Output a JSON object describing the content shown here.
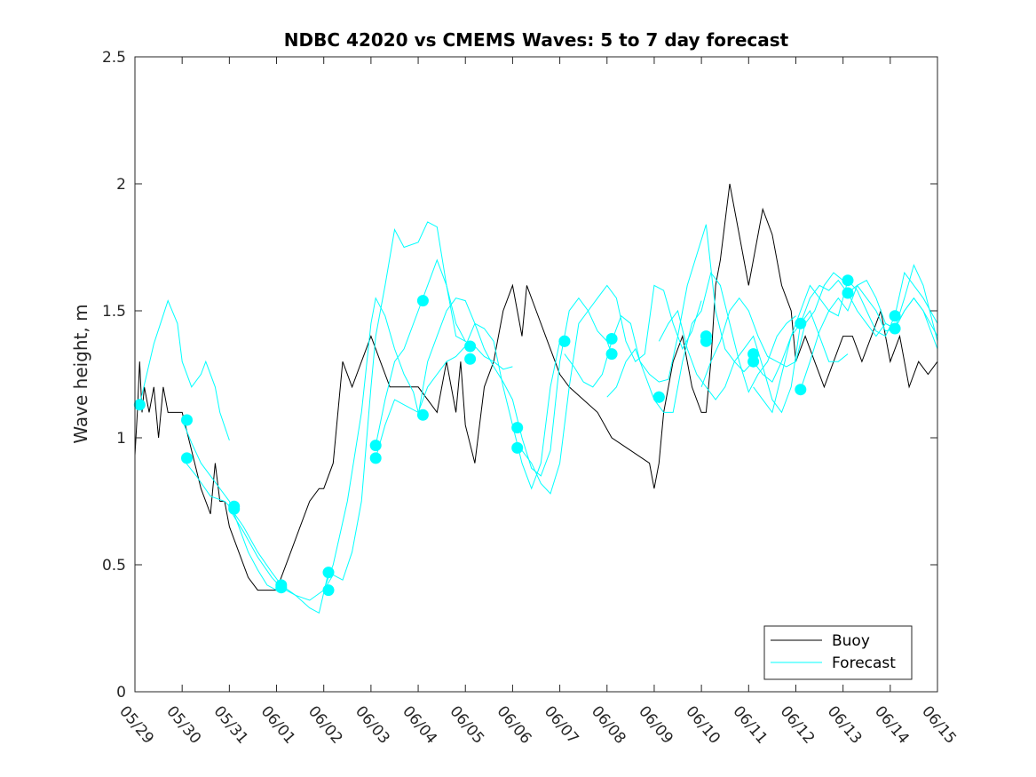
{
  "chart_data": {
    "type": "line",
    "title": "NDBC 42020 vs CMEMS Waves: 5 to 7 day forecast",
    "xlabel": "",
    "ylabel": "Wave height, m",
    "xlim": [
      "05/29",
      "06/15"
    ],
    "ylim": [
      0,
      2.5
    ],
    "x_ticks": [
      "05/29",
      "05/30",
      "05/31",
      "06/01",
      "06/02",
      "06/03",
      "06/04",
      "06/05",
      "06/06",
      "06/07",
      "06/08",
      "06/09",
      "06/10",
      "06/11",
      "06/12",
      "06/13",
      "06/14",
      "06/15"
    ],
    "y_ticks": [
      "0",
      "0.5",
      "1",
      "1.5",
      "2",
      "2.5"
    ],
    "legend": {
      "placement": "bottom-right",
      "entries": [
        "Buoy",
        "Forecast"
      ]
    },
    "colors": {
      "buoy": "#000000",
      "forecast": "#00ffff"
    },
    "series": [
      {
        "name": "Buoy",
        "x_days_after_0529": [
          0.0,
          0.05,
          0.1,
          0.15,
          0.2,
          0.3,
          0.4,
          0.5,
          0.6,
          0.7,
          0.8,
          0.9,
          1.0,
          1.2,
          1.4,
          1.6,
          1.7,
          1.8,
          1.9,
          2.0,
          2.2,
          2.4,
          2.6,
          2.8,
          3.0,
          3.1,
          3.3,
          3.5,
          3.7,
          3.9,
          4.0,
          4.2,
          4.4,
          4.6,
          4.8,
          5.0,
          5.2,
          5.4,
          5.6,
          5.8,
          6.0,
          6.2,
          6.4,
          6.6,
          6.8,
          6.9,
          7.0,
          7.2,
          7.4,
          7.6,
          7.8,
          8.0,
          8.2,
          8.3,
          8.5,
          8.7,
          8.9,
          9.0,
          9.2,
          9.5,
          9.8,
          10.1,
          10.5,
          10.9,
          11.0,
          11.1,
          11.2,
          11.4,
          11.6,
          11.8,
          12.0,
          12.1,
          12.2,
          12.3,
          12.4,
          12.6,
          12.8,
          13.0,
          13.1,
          13.3,
          13.5,
          13.7,
          13.9,
          14.0,
          14.2,
          14.4,
          14.6,
          14.8,
          15.0,
          15.2,
          15.4,
          15.6,
          15.8,
          16.0,
          16.2,
          16.4,
          16.6,
          16.8,
          17.0
        ],
        "values": [
          0.93,
          1.1,
          1.3,
          1.1,
          1.2,
          1.1,
          1.2,
          1.0,
          1.2,
          1.1,
          1.1,
          1.1,
          1.1,
          0.95,
          0.8,
          0.7,
          0.9,
          0.75,
          0.75,
          0.65,
          0.55,
          0.45,
          0.4,
          0.4,
          0.4,
          0.45,
          0.55,
          0.65,
          0.75,
          0.8,
          0.8,
          0.9,
          1.3,
          1.2,
          1.3,
          1.4,
          1.3,
          1.2,
          1.2,
          1.2,
          1.2,
          1.15,
          1.1,
          1.3,
          1.1,
          1.3,
          1.05,
          0.9,
          1.2,
          1.3,
          1.5,
          1.6,
          1.4,
          1.6,
          1.5,
          1.4,
          1.3,
          1.25,
          1.2,
          1.15,
          1.1,
          1.0,
          0.95,
          0.9,
          0.8,
          0.9,
          1.1,
          1.3,
          1.4,
          1.2,
          1.1,
          1.1,
          1.3,
          1.6,
          1.7,
          2.0,
          1.8,
          1.6,
          1.7,
          1.9,
          1.8,
          1.6,
          1.5,
          1.3,
          1.4,
          1.3,
          1.2,
          1.3,
          1.4,
          1.4,
          1.3,
          1.4,
          1.5,
          1.3,
          1.4,
          1.2,
          1.3,
          1.25,
          1.3
        ]
      },
      {
        "name": "",
        "x_days_after_0529": [
          0.1,
          0.4,
          0.7,
          0.9,
          1.0,
          1.2,
          1.4,
          1.5,
          1.7,
          1.8,
          2.0
        ],
        "values": [
          1.13,
          1.37,
          1.54,
          1.45,
          1.3,
          1.2,
          1.25,
          1.3,
          1.2,
          1.1,
          0.99
        ]
      },
      {
        "name": "",
        "x_days_after_0529": [
          1.0,
          1.2,
          1.4,
          1.6,
          1.8,
          2.0,
          2.2,
          2.4,
          2.6,
          2.8,
          3.0,
          3.1
        ],
        "values": [
          1.07,
          0.98,
          0.9,
          0.85,
          0.8,
          0.75,
          0.65,
          0.55,
          0.48,
          0.42,
          0.4,
          0.41
        ]
      },
      {
        "name": "",
        "x_days_after_0529": [
          1.0,
          1.3,
          1.6,
          1.9,
          2.0,
          2.3,
          2.6,
          2.9,
          3.1,
          3.4,
          3.7,
          3.9,
          4.1
        ],
        "values": [
          0.92,
          0.85,
          0.77,
          0.75,
          0.73,
          0.65,
          0.55,
          0.47,
          0.42,
          0.38,
          0.33,
          0.31,
          0.47
        ]
      },
      {
        "name": "",
        "x_days_after_0529": [
          2.0,
          2.3,
          2.6,
          2.9,
          3.1,
          3.4,
          3.7,
          4.0,
          4.2,
          4.5,
          4.8,
          5.0,
          5.1,
          5.3,
          5.5,
          5.7,
          5.9,
          6.0
        ],
        "values": [
          0.72,
          0.63,
          0.53,
          0.45,
          0.41,
          0.38,
          0.36,
          0.4,
          0.5,
          0.75,
          1.1,
          1.45,
          1.55,
          1.48,
          1.35,
          1.25,
          1.18,
          1.1
        ]
      },
      {
        "name": "",
        "x_days_after_0529": [
          4.0,
          4.2,
          4.4,
          4.6,
          4.8,
          5.0,
          5.1,
          5.3,
          5.5,
          5.7,
          6.0,
          6.2,
          6.4,
          6.6,
          6.8,
          7.0
        ],
        "values": [
          0.4,
          0.46,
          0.44,
          0.55,
          0.75,
          1.2,
          1.4,
          1.6,
          1.82,
          1.75,
          1.77,
          1.85,
          1.83,
          1.6,
          1.4,
          1.38
        ]
      },
      {
        "name": "",
        "x_days_after_0529": [
          5.1,
          5.3,
          5.5,
          5.7,
          6.0,
          6.2,
          6.4,
          6.6,
          6.8,
          7.0,
          7.2,
          7.4,
          7.6,
          7.8,
          8.0
        ],
        "values": [
          0.97,
          1.15,
          1.3,
          1.35,
          1.5,
          1.6,
          1.7,
          1.6,
          1.45,
          1.38,
          1.36,
          1.32,
          1.3,
          1.27,
          1.28
        ]
      },
      {
        "name": "",
        "x_days_after_0529": [
          5.1,
          5.3,
          5.5,
          5.7,
          6.0,
          6.2,
          6.4,
          6.6,
          6.8,
          7.0,
          7.2,
          7.4,
          7.6,
          7.8,
          8.0,
          8.2,
          8.4,
          8.6,
          8.8,
          9.0
        ],
        "values": [
          0.92,
          1.05,
          1.15,
          1.13,
          1.1,
          1.2,
          1.25,
          1.3,
          1.32,
          1.36,
          1.45,
          1.43,
          1.38,
          1.2,
          1.05,
          0.9,
          0.8,
          0.9,
          1.2,
          1.38
        ]
      },
      {
        "name": "",
        "x_days_after_0529": [
          6.0,
          6.2,
          6.4,
          6.6,
          6.8,
          7.0,
          7.2,
          7.4,
          7.6,
          7.8,
          8.0,
          8.2,
          8.4,
          8.6,
          8.8,
          9.0,
          9.2,
          9.4,
          9.6,
          9.8,
          10.0,
          10.1
        ],
        "values": [
          1.09,
          1.3,
          1.4,
          1.5,
          1.55,
          1.54,
          1.45,
          1.35,
          1.28,
          1.22,
          1.15,
          1.0,
          0.88,
          0.85,
          0.95,
          1.3,
          1.5,
          1.55,
          1.5,
          1.42,
          1.38,
          1.33
        ]
      },
      {
        "name": "",
        "x_days_after_0529": [
          8.0,
          8.2,
          8.4,
          8.6,
          8.8,
          9.0,
          9.2,
          9.4,
          9.6,
          9.8,
          10.0,
          10.2,
          10.4,
          10.6,
          10.8,
          11.0,
          11.2,
          11.4,
          11.6,
          11.8,
          12.0
        ],
        "values": [
          0.96,
          0.95,
          0.9,
          0.82,
          0.78,
          0.9,
          1.2,
          1.45,
          1.5,
          1.55,
          1.6,
          1.55,
          1.38,
          1.3,
          1.33,
          1.6,
          1.58,
          1.45,
          1.35,
          1.42,
          1.54
        ]
      },
      {
        "name": "",
        "x_days_after_0529": [
          9.1,
          9.3,
          9.5,
          9.7,
          9.9,
          10.1,
          10.3,
          10.5,
          10.7,
          10.9,
          11.1,
          11.3,
          11.5,
          11.7,
          11.9,
          12.1,
          12.3,
          12.5,
          12.7,
          12.9,
          13.1
        ],
        "values": [
          1.33,
          1.28,
          1.22,
          1.2,
          1.25,
          1.38,
          1.48,
          1.45,
          1.3,
          1.25,
          1.22,
          1.23,
          1.4,
          1.6,
          1.72,
          1.84,
          1.5,
          1.35,
          1.3,
          1.26,
          1.3
        ]
      },
      {
        "name": "",
        "x_days_after_0529": [
          10.0,
          10.2,
          10.4,
          10.6,
          10.8,
          11.0,
          11.2,
          11.4,
          11.6,
          11.8,
          12.0,
          12.2,
          12.4,
          12.6,
          12.8,
          13.0,
          13.2,
          13.4,
          13.6,
          13.8,
          14.0
        ],
        "values": [
          1.16,
          1.2,
          1.3,
          1.35,
          1.25,
          1.15,
          1.1,
          1.1,
          1.3,
          1.45,
          1.5,
          1.65,
          1.6,
          1.45,
          1.3,
          1.18,
          1.25,
          1.3,
          1.4,
          1.45,
          1.48
        ]
      },
      {
        "name": "",
        "x_days_after_0529": [
          11.1,
          11.3,
          11.5,
          11.7,
          11.9,
          12.1,
          12.3,
          12.5,
          12.7,
          12.9,
          13.1,
          13.3,
          13.5,
          13.7,
          13.9,
          14.1,
          14.3,
          14.5,
          14.7,
          14.9,
          15.1
        ],
        "values": [
          1.38,
          1.45,
          1.5,
          1.35,
          1.25,
          1.2,
          1.15,
          1.2,
          1.3,
          1.35,
          1.4,
          1.28,
          1.15,
          1.1,
          1.2,
          1.45,
          1.5,
          1.4,
          1.3,
          1.3,
          1.33
        ]
      },
      {
        "name": "",
        "x_days_after_0529": [
          13.1,
          13.3,
          13.5,
          13.7,
          13.9,
          14.1,
          14.3,
          14.5,
          14.7,
          14.9,
          15.1,
          15.3,
          15.5,
          15.7,
          15.9,
          16.1,
          16.3,
          16.5,
          16.7,
          17.0
        ],
        "values": [
          1.3,
          1.25,
          1.22,
          1.3,
          1.4,
          1.45,
          1.55,
          1.6,
          1.58,
          1.62,
          1.57,
          1.5,
          1.45,
          1.4,
          1.45,
          1.43,
          1.5,
          1.55,
          1.5,
          1.4
        ]
      },
      {
        "name": "",
        "x_days_after_0529": [
          14.1,
          14.3,
          14.5,
          14.7,
          14.9,
          15.1,
          15.3,
          15.5,
          15.7,
          15.9,
          16.1,
          16.3,
          16.5,
          16.7,
          17.0
        ],
        "values": [
          1.19,
          1.3,
          1.42,
          1.5,
          1.48,
          1.62,
          1.58,
          1.5,
          1.42,
          1.4,
          1.48,
          1.65,
          1.6,
          1.55,
          1.45
        ]
      },
      {
        "name": "",
        "x_days_after_0529": [
          13.1,
          13.3,
          13.5,
          13.7,
          13.9,
          14.1,
          14.3,
          14.5,
          14.7,
          14.9,
          15.1,
          15.3,
          15.5,
          15.7,
          15.9,
          16.1,
          16.3,
          16.5,
          16.7,
          17.0
        ],
        "values": [
          1.2,
          1.15,
          1.1,
          1.25,
          1.4,
          1.5,
          1.6,
          1.55,
          1.5,
          1.55,
          1.5,
          1.6,
          1.62,
          1.55,
          1.45,
          1.43,
          1.55,
          1.68,
          1.6,
          1.38
        ]
      },
      {
        "name": "",
        "x_days_after_0529": [
          15.1,
          15.3,
          15.5,
          15.7,
          15.9,
          16.1,
          16.3,
          16.5,
          16.7,
          17.0
        ],
        "values": [
          1.57,
          1.6,
          1.55,
          1.5,
          1.42,
          1.43,
          1.5,
          1.55,
          1.5,
          1.35
        ]
      },
      {
        "name": "",
        "x_days_after_0529": [
          12.0,
          12.2,
          12.4,
          12.6,
          12.8,
          13.0,
          13.2,
          13.4,
          13.6,
          13.8,
          14.0,
          14.2,
          14.4,
          14.6,
          14.8,
          15.0
        ],
        "values": [
          1.2,
          1.3,
          1.38,
          1.5,
          1.55,
          1.5,
          1.4,
          1.32,
          1.3,
          1.28,
          1.3,
          1.45,
          1.5,
          1.6,
          1.65,
          1.62
        ]
      }
    ],
    "forecast_markers": {
      "x_days_after_0529": [
        0.1,
        1.1,
        1.1,
        2.1,
        2.1,
        3.1,
        3.1,
        4.1,
        4.1,
        5.1,
        5.1,
        6.1,
        6.1,
        7.1,
        7.1,
        8.1,
        8.1,
        9.1,
        9.1,
        10.1,
        10.1,
        11.1,
        11.1,
        12.1,
        12.1,
        13.1,
        13.1,
        14.1,
        14.1,
        15.1,
        15.1,
        16.1,
        16.1
      ],
      "values": [
        1.13,
        1.07,
        0.92,
        0.72,
        0.73,
        0.41,
        0.42,
        0.47,
        0.4,
        0.97,
        0.92,
        1.54,
        1.09,
        1.36,
        1.31,
        0.96,
        1.04,
        1.38,
        1.38,
        1.39,
        1.33,
        1.16,
        1.16,
        1.38,
        1.4,
        1.3,
        1.33,
        1.45,
        1.19,
        1.62,
        1.57,
        1.43,
        1.48
      ]
    }
  }
}
